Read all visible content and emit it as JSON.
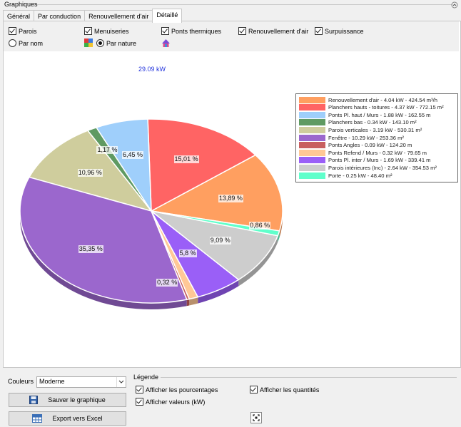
{
  "section": {
    "title": "Graphiques"
  },
  "tabs": [
    {
      "label": "Général"
    },
    {
      "label": "Par conduction"
    },
    {
      "label": "Renouvellement d'air"
    },
    {
      "label": "Détaillé",
      "active": true
    }
  ],
  "options": {
    "parois": "Parois",
    "menuiseries": "Menuiseries",
    "ponts_thermiques": "Ponts thermiques",
    "renouvellement": "Renouvellement d'air",
    "surpuissance": "Surpuissance",
    "par_nom": "Par nom",
    "par_nature": "Par nature"
  },
  "total_label": "29.09 kW",
  "chart_data": {
    "type": "pie",
    "total": "29.09 kW",
    "series": [
      {
        "label": "Renouvellement d'air - 4.04 kW - 424.54 m³/h",
        "percent": 13.89,
        "percent_label": "13,89 %",
        "color": "#ff9f60"
      },
      {
        "label": "Planchers hauts - toitures - 4.37 kW - 772.15 m²",
        "percent": 15.01,
        "percent_label": "15,01 %",
        "color": "#ff6464"
      },
      {
        "label": "Ponts Pl. haut / Murs - 1.88 kW - 162.55 m",
        "percent": 6.45,
        "percent_label": "6,45 %",
        "color": "#9fcffb"
      },
      {
        "label": "Planchers bas - 0.34 kW - 143.10 m²",
        "percent": 1.17,
        "percent_label": "1,17 %",
        "color": "#5f9a62"
      },
      {
        "label": "Parois verticales - 3.19 kW - 530.31 m²",
        "percent": 10.96,
        "percent_label": "10,96 %",
        "color": "#cfcd9d"
      },
      {
        "label": "Fenêtre - 10.29 kW - 253.36 m²",
        "percent": 35.35,
        "percent_label": "35,35 %",
        "color": "#9b67cd"
      },
      {
        "label": "Ponts Angles - 0.09 kW - 124.20 m",
        "percent": 0.32,
        "percent_label": "0,32 %",
        "color": "#c85f5f"
      },
      {
        "label": "Ponts Refend / Murs - 0.32 kW - 79.65 m",
        "percent": 1.1,
        "percent_label": "",
        "color": "#ffc896"
      },
      {
        "label": "Ponts Pl. inter / Murs - 1.69 kW - 339.41 m",
        "percent": 5.8,
        "percent_label": "5,8 %",
        "color": "#9a5ff7"
      },
      {
        "label": "Parois intérieures (Inc) - 2.64 kW - 354.53 m²",
        "percent": 9.09,
        "percent_label": "9,09 %",
        "color": "#cdcdcd"
      },
      {
        "label": "Porte - 0.25 kW - 48.40 m²",
        "percent": 0.86,
        "percent_label": "0,86 %",
        "color": "#60ffcb"
      }
    ]
  },
  "bottom": {
    "couleurs_label": "Couleurs",
    "couleurs_value": "Moderne",
    "legende_title": "Légende",
    "save_button": "Sauver le graphique",
    "export_button": "Export vers Excel",
    "afficher_pourcentages": "Afficher les pourcentages",
    "afficher_quantites": "Afficher les quantités",
    "afficher_valeurs": "Afficher valeurs (kW)"
  }
}
